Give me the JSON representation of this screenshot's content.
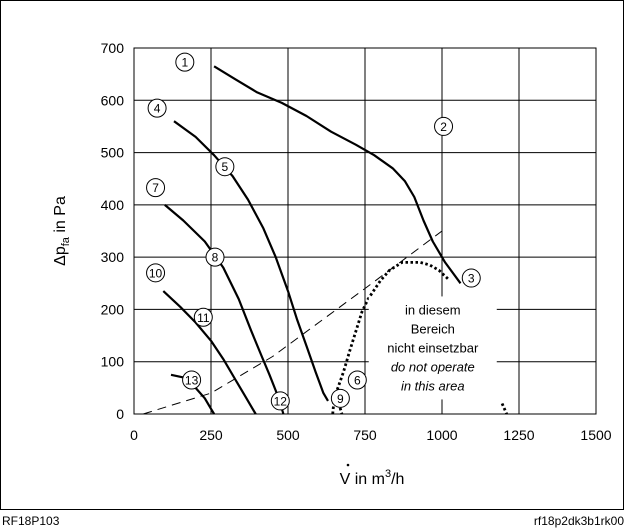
{
  "chart_data": {
    "type": "line",
    "ylabel_main": "Δp",
    "ylabel_sub": "fa",
    "ylabel_tail": " in Pa",
    "xlabel_main": "V",
    "xlabel_tail": " in m",
    "xlabel_sup": "3",
    "xlabel_end": "/h",
    "xlim": [
      0,
      1500
    ],
    "ylim": [
      0,
      700
    ],
    "x_ticks": [
      0,
      250,
      500,
      750,
      1000,
      1250,
      1500
    ],
    "y_ticks": [
      0,
      100,
      200,
      300,
      400,
      500,
      600,
      700
    ],
    "x_tick_labels": [
      "0",
      "250",
      "500",
      "750",
      "1000",
      "1250",
      "1500"
    ],
    "y_tick_labels": [
      "0",
      "100",
      "200",
      "300",
      "400",
      "500",
      "600",
      "700"
    ],
    "grid": true,
    "series": [
      {
        "style": "solid",
        "points": [
          [
            260,
            665
          ],
          [
            330,
            640
          ],
          [
            400,
            615
          ],
          [
            480,
            595
          ],
          [
            560,
            570
          ],
          [
            640,
            540
          ],
          [
            720,
            515
          ],
          [
            780,
            495
          ],
          [
            840,
            470
          ],
          [
            880,
            445
          ],
          [
            910,
            415
          ],
          [
            940,
            370
          ],
          [
            970,
            330
          ],
          [
            1010,
            290
          ],
          [
            1060,
            250
          ]
        ]
      },
      {
        "style": "solid",
        "points": [
          [
            130,
            560
          ],
          [
            200,
            530
          ],
          [
            260,
            495
          ],
          [
            320,
            455
          ],
          [
            370,
            410
          ],
          [
            420,
            355
          ],
          [
            460,
            300
          ],
          [
            500,
            235
          ],
          [
            530,
            180
          ],
          [
            560,
            130
          ],
          [
            590,
            80
          ],
          [
            615,
            40
          ],
          [
            630,
            25
          ]
        ]
      },
      {
        "style": "solid",
        "points": [
          [
            100,
            400
          ],
          [
            160,
            370
          ],
          [
            230,
            330
          ],
          [
            290,
            280
          ],
          [
            340,
            220
          ],
          [
            380,
            160
          ],
          [
            415,
            110
          ],
          [
            440,
            75
          ],
          [
            460,
            45
          ],
          [
            475,
            20
          ],
          [
            485,
            0
          ]
        ]
      },
      {
        "style": "solid",
        "points": [
          [
            95,
            235
          ],
          [
            150,
            205
          ],
          [
            200,
            175
          ],
          [
            250,
            140
          ],
          [
            290,
            105
          ],
          [
            330,
            65
          ],
          [
            360,
            35
          ],
          [
            385,
            10
          ],
          [
            395,
            0
          ]
        ]
      },
      {
        "style": "solid",
        "points": [
          [
            120,
            75
          ],
          [
            160,
            70
          ],
          [
            200,
            50
          ],
          [
            230,
            30
          ],
          [
            250,
            10
          ],
          [
            260,
            0
          ]
        ]
      },
      {
        "style": "dotted",
        "points": [
          [
            645,
            0
          ],
          [
            650,
            30
          ],
          [
            680,
            80
          ],
          [
            700,
            120
          ],
          [
            740,
            195
          ],
          [
            760,
            220
          ],
          [
            800,
            255
          ],
          [
            830,
            275
          ],
          [
            870,
            290
          ],
          [
            900,
            290
          ],
          [
            930,
            290
          ],
          [
            960,
            285
          ],
          [
            990,
            275
          ],
          [
            1020,
            258
          ]
        ]
      },
      {
        "style": "dotted",
        "points": [
          [
            660,
            30
          ],
          [
            675,
            0
          ]
        ]
      },
      {
        "style": "dotted",
        "points": [
          [
            1195,
            20
          ],
          [
            1210,
            0
          ]
        ]
      },
      {
        "style": "dashed",
        "points": [
          [
            30,
            0
          ],
          [
            250,
            40
          ],
          [
            450,
            110
          ],
          [
            600,
            175
          ],
          [
            750,
            240
          ],
          [
            1000,
            350
          ]
        ]
      }
    ],
    "curve_markers": [
      {
        "label": "1",
        "x": 165,
        "y": 673
      },
      {
        "label": "2",
        "x": 1005,
        "y": 550
      },
      {
        "label": "3",
        "x": 1095,
        "y": 260
      },
      {
        "label": "4",
        "x": 75,
        "y": 585
      },
      {
        "label": "5",
        "x": 295,
        "y": 473
      },
      {
        "label": "6",
        "x": 725,
        "y": 65
      },
      {
        "label": "7",
        "x": 70,
        "y": 433
      },
      {
        "label": "8",
        "x": 263,
        "y": 300
      },
      {
        "label": "9",
        "x": 670,
        "y": 30
      },
      {
        "label": "10",
        "x": 70,
        "y": 270
      },
      {
        "label": "11",
        "x": 225,
        "y": 185
      },
      {
        "label": "12",
        "x": 475,
        "y": 25
      },
      {
        "label": "13",
        "x": 187,
        "y": 65
      }
    ],
    "annotation": {
      "lines": [
        "in diesem",
        "Bereich",
        "nicht einsetzbar"
      ],
      "italic_lines": [
        "do not operate",
        "in this area"
      ],
      "x": 970,
      "y_top": 200
    }
  },
  "footer": {
    "left": "RF18P103",
    "right": "rf18p2dk3b1rk00"
  }
}
